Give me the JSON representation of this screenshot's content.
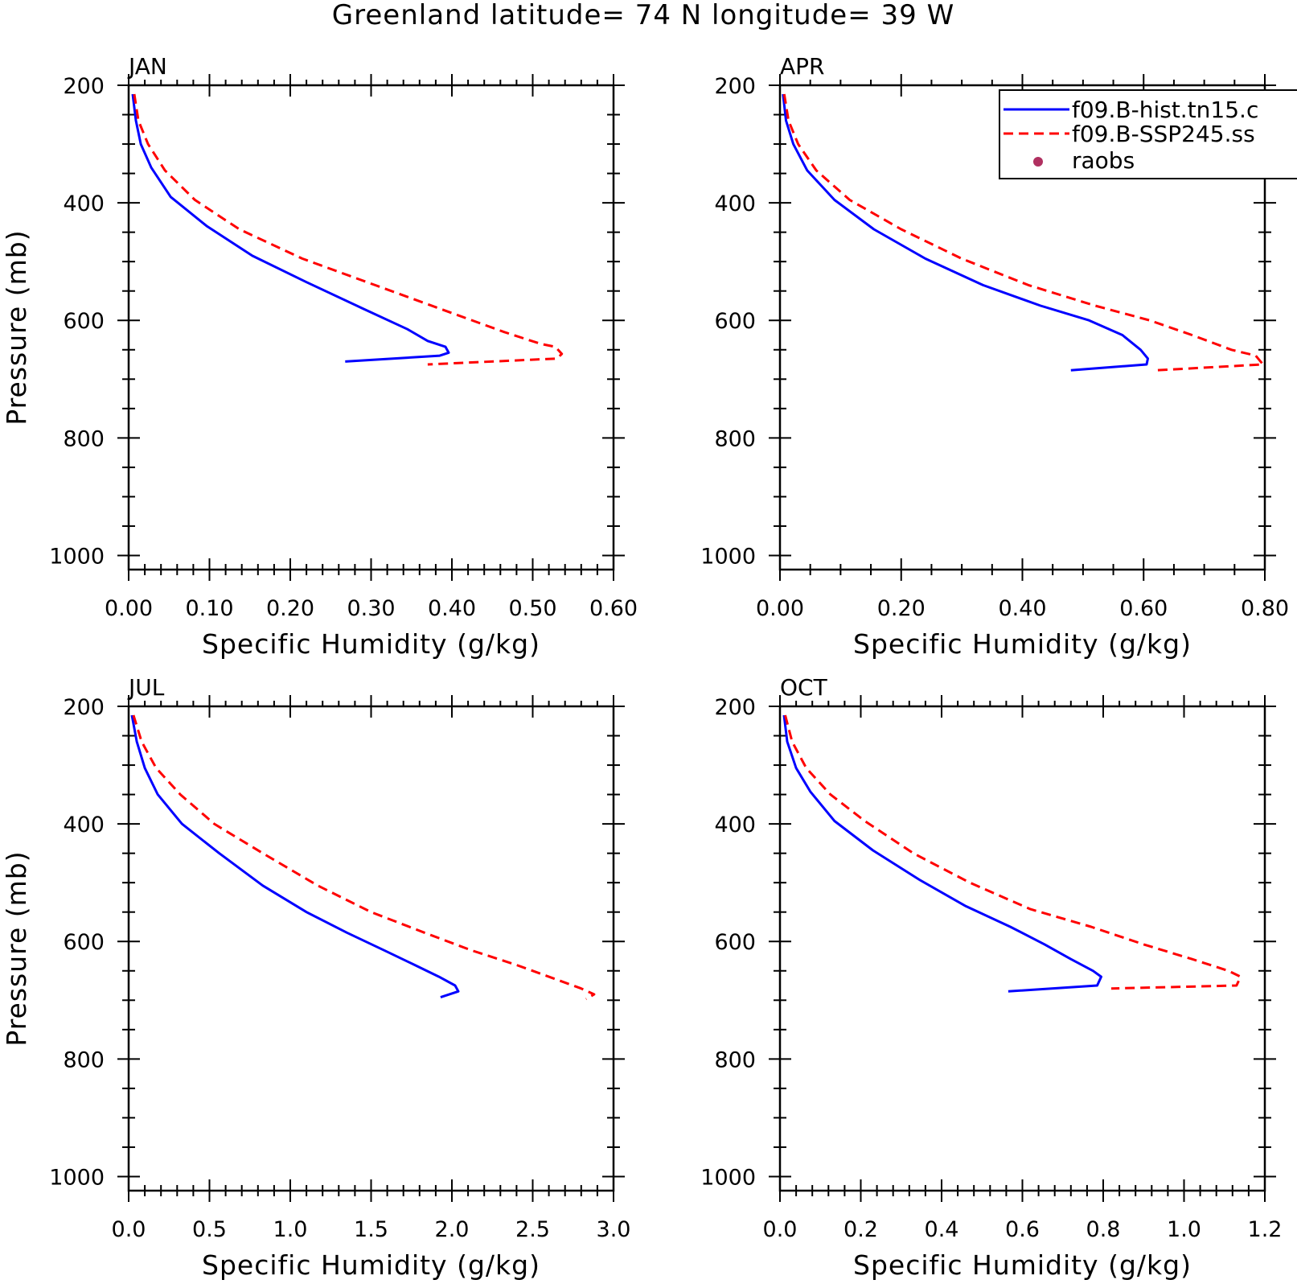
{
  "title": "Greenland  latitude= 74 N longitude= 39 W",
  "legend": {
    "entries": [
      {
        "label": "f09.B-hist.tn15.c",
        "color": "#0000ff",
        "style": "solid",
        "marker": "line"
      },
      {
        "label": "f09.B-SSP245.ss",
        "color": "#ff0000",
        "style": "dashed",
        "marker": "line"
      },
      {
        "label": "raobs",
        "color": "#b03060",
        "style": "none",
        "marker": "dot"
      }
    ]
  },
  "colors": {
    "hist": "#0000ff",
    "ssp": "#ff0000",
    "raobs": "#b03060"
  },
  "chart_data": [
    {
      "type": "line",
      "title": "JAN",
      "xlabel": "Specific Humidity (g/kg)",
      "ylabel": "Pressure (mb)",
      "xlim": [
        0.0,
        0.6
      ],
      "ylim": [
        200,
        1000
      ],
      "y_inverted": true,
      "xticks": [
        "0.00",
        "0.10",
        "0.20",
        "0.30",
        "0.40",
        "0.50",
        "0.60"
      ],
      "yticks": [
        "200",
        "400",
        "600",
        "800",
        "1000"
      ],
      "series": [
        {
          "key": "hist",
          "x": [
            0.005,
            0.009,
            0.015,
            0.028,
            0.052,
            0.097,
            0.153,
            0.22,
            0.29,
            0.345,
            0.37,
            0.392,
            0.396,
            0.385,
            0.268
          ],
          "y": [
            215,
            260,
            300,
            340,
            390,
            440,
            490,
            535,
            580,
            615,
            635,
            645,
            655,
            660,
            670
          ]
        },
        {
          "key": "ssp",
          "x": [
            0.007,
            0.012,
            0.024,
            0.045,
            0.082,
            0.137,
            0.215,
            0.305,
            0.395,
            0.465,
            0.51,
            0.528,
            0.536,
            0.53,
            0.37
          ],
          "y": [
            215,
            260,
            300,
            345,
            395,
            445,
            495,
            540,
            585,
            620,
            640,
            645,
            657,
            665,
            675
          ]
        }
      ]
    },
    {
      "type": "line",
      "title": "APR",
      "xlabel": "Specific Humidity (g/kg)",
      "ylabel": "",
      "xlim": [
        0.0,
        0.8
      ],
      "ylim": [
        200,
        1000
      ],
      "y_inverted": true,
      "xticks": [
        "0.00",
        "0.20",
        "0.40",
        "0.60",
        "0.80"
      ],
      "yticks": [
        "200",
        "400",
        "600",
        "800",
        "1000"
      ],
      "series": [
        {
          "key": "hist",
          "x": [
            0.005,
            0.01,
            0.022,
            0.045,
            0.09,
            0.155,
            0.24,
            0.335,
            0.43,
            0.51,
            0.565,
            0.595,
            0.607,
            0.605,
            0.48
          ],
          "y": [
            215,
            260,
            300,
            345,
            395,
            445,
            495,
            540,
            575,
            600,
            625,
            650,
            665,
            675,
            685
          ]
        },
        {
          "key": "ssp",
          "x": [
            0.007,
            0.014,
            0.03,
            0.06,
            0.115,
            0.2,
            0.3,
            0.41,
            0.52,
            0.61,
            0.68,
            0.745,
            0.785,
            0.797,
            0.62
          ],
          "y": [
            215,
            260,
            300,
            345,
            395,
            445,
            495,
            540,
            575,
            600,
            625,
            650,
            660,
            675,
            685
          ]
        }
      ]
    },
    {
      "type": "line",
      "title": "JUL",
      "xlabel": "Specific Humidity (g/kg)",
      "ylabel": "Pressure (mb)",
      "xlim": [
        0.0,
        3.0
      ],
      "ylim": [
        200,
        1000
      ],
      "y_inverted": true,
      "xticks": [
        "0.0",
        "0.5",
        "1.0",
        "1.5",
        "2.0",
        "2.5",
        "3.0"
      ],
      "yticks": [
        "200",
        "400",
        "600",
        "800",
        "1000"
      ],
      "series": [
        {
          "key": "hist",
          "x": [
            0.02,
            0.05,
            0.1,
            0.18,
            0.33,
            0.56,
            0.83,
            1.1,
            1.35,
            1.58,
            1.77,
            1.92,
            2.02,
            2.04,
            1.93
          ],
          "y": [
            215,
            260,
            305,
            350,
            400,
            450,
            505,
            550,
            585,
            615,
            640,
            660,
            675,
            685,
            695
          ]
        },
        {
          "key": "ssp",
          "x": [
            0.03,
            0.08,
            0.17,
            0.32,
            0.53,
            0.83,
            1.17,
            1.5,
            1.83,
            2.12,
            2.4,
            2.65,
            2.8,
            2.88,
            2.83
          ],
          "y": [
            215,
            260,
            305,
            350,
            400,
            450,
            505,
            550,
            585,
            615,
            640,
            665,
            680,
            690,
            698
          ]
        }
      ]
    },
    {
      "type": "line",
      "title": "OCT",
      "xlabel": "Specific Humidity (g/kg)",
      "ylabel": "",
      "xlim": [
        0.0,
        1.2
      ],
      "ylim": [
        200,
        1000
      ],
      "y_inverted": true,
      "xticks": [
        "0.0",
        "0.2",
        "0.4",
        "0.6",
        "0.8",
        "1.0",
        "1.2"
      ],
      "yticks": [
        "200",
        "400",
        "600",
        "800",
        "1000"
      ],
      "series": [
        {
          "key": "hist",
          "x": [
            0.01,
            0.018,
            0.04,
            0.075,
            0.135,
            0.23,
            0.345,
            0.46,
            0.57,
            0.655,
            0.72,
            0.775,
            0.795,
            0.785,
            0.565
          ],
          "y": [
            215,
            260,
            305,
            345,
            395,
            445,
            495,
            540,
            575,
            605,
            630,
            650,
            660,
            675,
            685
          ]
        },
        {
          "key": "ssp",
          "x": [
            0.013,
            0.03,
            0.065,
            0.125,
            0.21,
            0.33,
            0.47,
            0.62,
            0.77,
            0.9,
            1.02,
            1.11,
            1.14,
            1.13,
            0.82
          ],
          "y": [
            215,
            260,
            305,
            350,
            395,
            450,
            500,
            545,
            575,
            605,
            630,
            650,
            660,
            675,
            680
          ]
        }
      ]
    }
  ]
}
